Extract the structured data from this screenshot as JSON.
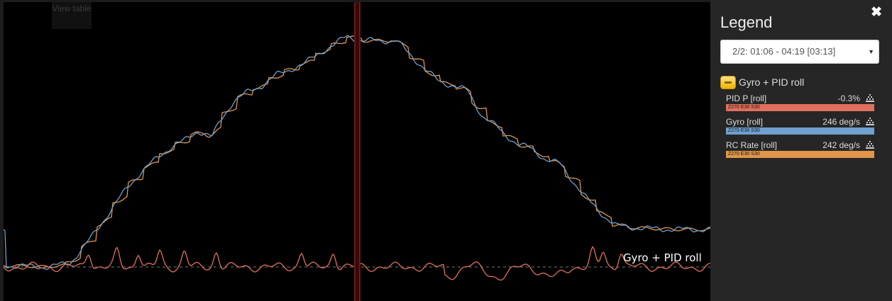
{
  "graph": {
    "view_table_label": "View table",
    "label": "Gyro + PID roll",
    "colors": {
      "pid": "#e0705e",
      "gyro": "#6fa0cf",
      "rc": "#e1964a",
      "cursor": "#7a1f1f",
      "zero_line": "#777777"
    }
  },
  "legend": {
    "title": "Legend",
    "close_icon": "close-icon",
    "selector": {
      "value": "2/2: 01:06 - 04:19 [03:13]"
    },
    "group": {
      "title": "Gyro + PID roll",
      "toggle_icon": "minus-icon"
    },
    "series": [
      {
        "name": "PID P [roll]",
        "value": "-0.3%",
        "bar_label": "Z270 E30 S30",
        "color": "#e0705e"
      },
      {
        "name": "Gyro [roll]",
        "value": "246 deg/s",
        "bar_label": "Z270 E30 S30",
        "color": "#6fa0cf"
      },
      {
        "name": "RC Rate [roll]",
        "value": "242 deg/s",
        "bar_label": "Z270 E30 S30",
        "color": "#e1964a"
      }
    ]
  }
}
